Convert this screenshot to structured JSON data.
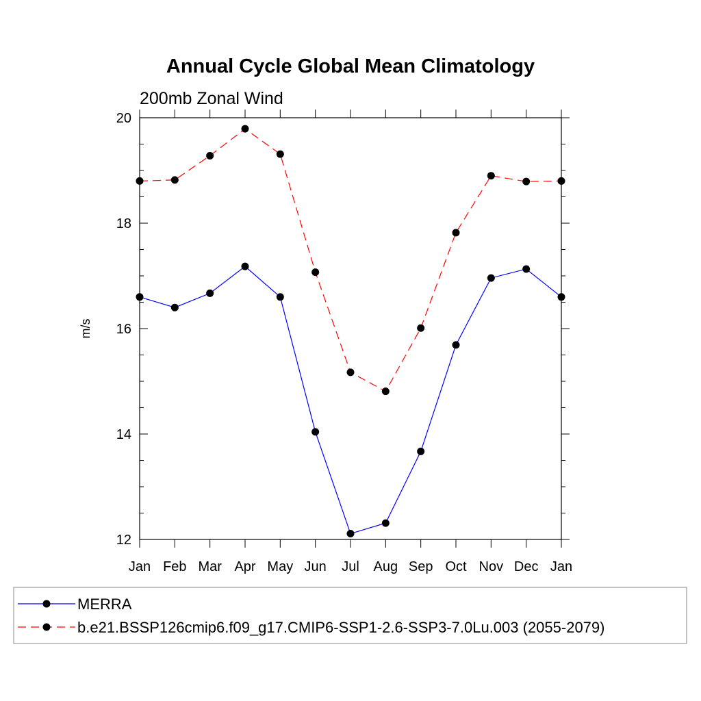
{
  "chart_data": {
    "type": "line",
    "title": "Annual Cycle Global Mean Climatology",
    "subtitle": "200mb Zonal Wind",
    "xlabel": "",
    "ylabel": "m/s",
    "categories": [
      "Jan",
      "Feb",
      "Mar",
      "Apr",
      "May",
      "Jun",
      "Jul",
      "Aug",
      "Sep",
      "Oct",
      "Nov",
      "Dec",
      "Jan"
    ],
    "ylim": [
      12,
      20
    ],
    "yticks": [
      "12",
      "14",
      "16",
      "18",
      "20"
    ],
    "grid": false,
    "legend_position": "bottom",
    "series": [
      {
        "name": "MERRA",
        "color": "#0000ff",
        "dash": "solid",
        "values": [
          16.6,
          16.4,
          16.67,
          17.18,
          16.6,
          14.04,
          12.11,
          12.31,
          13.67,
          15.69,
          16.96,
          17.13,
          16.6
        ]
      },
      {
        "name": "b.e21.BSSP126cmip6.f09_g17.CMIP6-SSP1-2.6-SSP3-7.0Lu.003 (2055-2079)",
        "color": "#ff0000",
        "dash": "dashed",
        "values": [
          18.8,
          18.82,
          19.28,
          19.79,
          19.31,
          17.07,
          15.17,
          14.81,
          16.01,
          17.82,
          18.9,
          18.79,
          18.8
        ]
      }
    ]
  }
}
